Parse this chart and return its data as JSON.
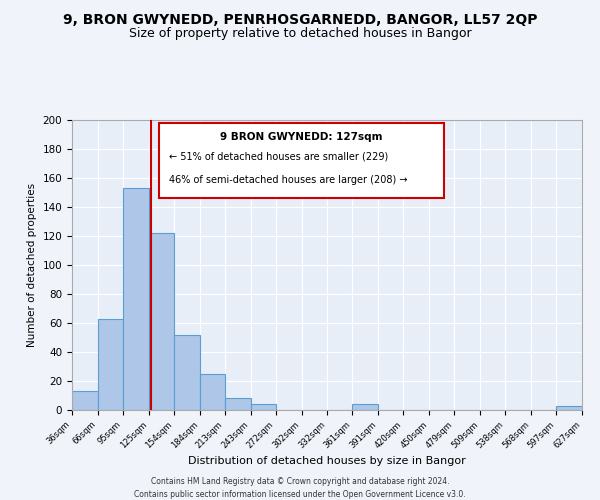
{
  "title": "9, BRON GWYNEDD, PENRHOSGARNEDD, BANGOR, LL57 2QP",
  "subtitle": "Size of property relative to detached houses in Bangor",
  "xlabel": "Distribution of detached houses by size in Bangor",
  "ylabel": "Number of detached properties",
  "bar_values": [
    13,
    63,
    153,
    122,
    52,
    25,
    8,
    4,
    0,
    0,
    0,
    4,
    0,
    0,
    0,
    0,
    0,
    0,
    0,
    3
  ],
  "bin_labels": [
    "36sqm",
    "66sqm",
    "95sqm",
    "125sqm",
    "154sqm",
    "184sqm",
    "213sqm",
    "243sqm",
    "272sqm",
    "302sqm",
    "332sqm",
    "361sqm",
    "391sqm",
    "420sqm",
    "450sqm",
    "479sqm",
    "509sqm",
    "538sqm",
    "568sqm",
    "597sqm",
    "627sqm"
  ],
  "bar_edges": [
    36,
    66,
    95,
    125,
    154,
    184,
    213,
    243,
    272,
    302,
    332,
    361,
    391,
    420,
    450,
    479,
    509,
    538,
    568,
    597,
    627
  ],
  "bar_color": "#aec6e8",
  "bar_edge_color": "#5a9fd4",
  "vline_x": 127,
  "vline_color": "#cc0000",
  "ylim": [
    0,
    200
  ],
  "yticks": [
    0,
    20,
    40,
    60,
    80,
    100,
    120,
    140,
    160,
    180,
    200
  ],
  "annotation_title": "9 BRON GWYNEDD: 127sqm",
  "annotation_line1": "← 51% of detached houses are smaller (229)",
  "annotation_line2": "46% of semi-detached houses are larger (208) →",
  "annotation_box_color": "#ffffff",
  "annotation_box_edge": "#cc0000",
  "footer_line1": "Contains HM Land Registry data © Crown copyright and database right 2024.",
  "footer_line2": "Contains public sector information licensed under the Open Government Licence v3.0.",
  "bg_color": "#f0f4fa",
  "plot_bg_color": "#e8eef8",
  "title_fontsize": 10,
  "subtitle_fontsize": 9
}
